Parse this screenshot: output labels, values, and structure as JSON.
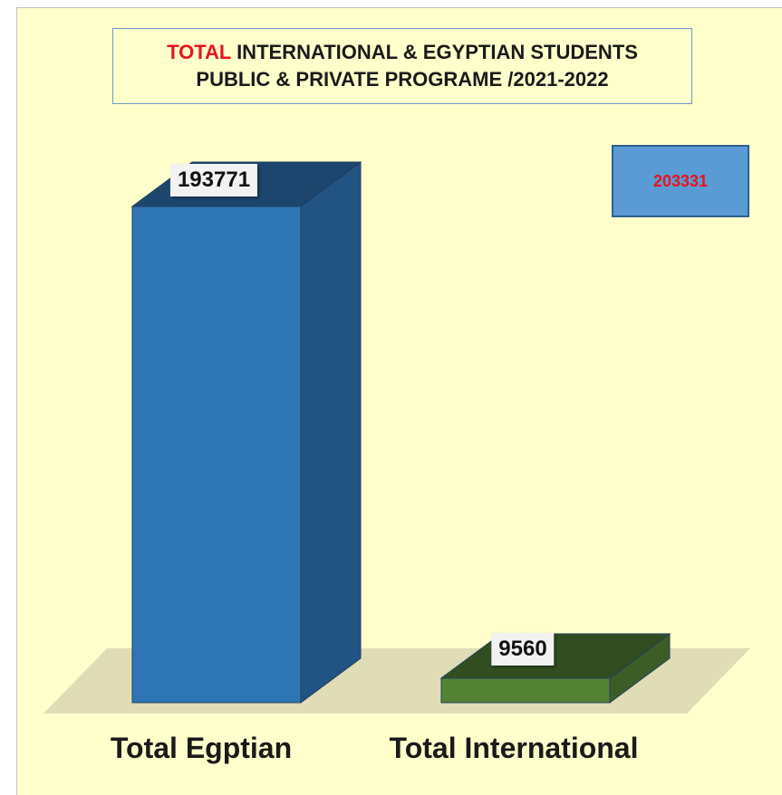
{
  "chart_data": {
    "type": "bar",
    "title_accent": "TOTAL",
    "title_rest": " INTERNATIONAL & EGYPTIAN STUDENTS",
    "subtitle": "PUBLIC & PRIVATE PROGRAME /2021-2022",
    "categories": [
      "Total Egptian",
      "Total International"
    ],
    "values": [
      193771,
      9560
    ],
    "value_labels": [
      "193771",
      "9560"
    ],
    "bar_colors": [
      "#2e75b6",
      "#548235"
    ],
    "total_label": "203331",
    "ylim": [
      0,
      193771
    ],
    "grid": false,
    "legend": "none",
    "style": "3d-column"
  }
}
